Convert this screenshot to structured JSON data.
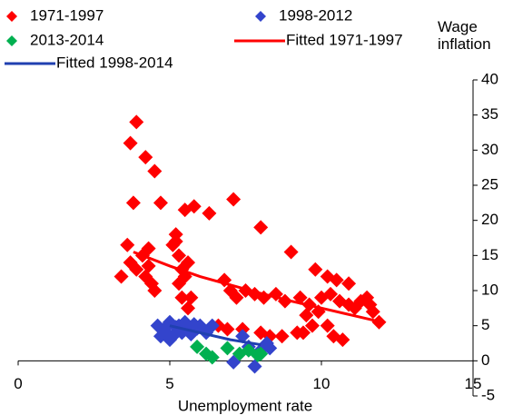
{
  "chart_data": {
    "type": "scatter",
    "x_label": "Unemployment rate",
    "y_label": "Wage inflation",
    "xlim": [
      0,
      15
    ],
    "xticks": [
      0,
      5,
      10,
      15
    ],
    "ylim": [
      -5,
      40
    ],
    "yticks": [
      -5,
      0,
      5,
      10,
      15,
      20,
      25,
      30,
      35,
      40
    ],
    "y_axis_position": "right",
    "grid": false,
    "series": [
      {
        "name": "1971-1997",
        "color": "#ff0000",
        "mark": "diamond",
        "x": [
          3.4,
          3.6,
          3.7,
          3.8,
          3.9,
          4.2,
          4.5,
          4.7,
          3.7,
          3.9,
          4.1,
          4.3,
          4.2,
          4.4,
          4.5,
          4.3,
          5.2,
          5.1,
          5.3,
          5.4,
          5.5,
          5.3,
          5.4,
          5.6,
          5.5,
          5.8,
          6.3,
          7.1,
          8.0,
          5.2,
          5.7,
          5.6,
          6.8,
          7.0,
          7.2,
          7.5,
          7.8,
          8.1,
          8.5,
          8.8,
          9.3,
          9.6,
          10.0,
          10.3,
          10.6,
          10.9,
          11.1,
          11.3,
          11.5,
          11.7,
          11.9,
          11.6,
          9.0,
          9.8,
          10.2,
          10.5,
          10.9,
          9.5,
          9.9,
          10.2,
          10.4,
          10.7,
          8.0,
          8.3,
          8.7,
          9.2,
          6.9,
          7.4,
          6.6,
          9.4,
          9.7
        ],
        "values": [
          12,
          16.5,
          31,
          22.5,
          34,
          29,
          27,
          22.5,
          14,
          13,
          15,
          16,
          12,
          11,
          10,
          13.5,
          18,
          16.5,
          15,
          13,
          12,
          11,
          9,
          7.5,
          21.5,
          22,
          21,
          23,
          19,
          17,
          9,
          14,
          11.5,
          10,
          9,
          10,
          9.5,
          9,
          9.5,
          8.5,
          9,
          8,
          9,
          9.5,
          8.5,
          8,
          7.5,
          8.5,
          9,
          7,
          5.5,
          8,
          15.5,
          13,
          12,
          11.5,
          11,
          6.5,
          7,
          5,
          3.5,
          3,
          4,
          3.5,
          3.5,
          4,
          4.5,
          4.5,
          5,
          4,
          5
        ]
      },
      {
        "name": "1998-2012",
        "color": "#3344cc",
        "mark": "diamond",
        "x": [
          4.6,
          4.8,
          4.9,
          5.0,
          5.1,
          5.2,
          5.3,
          5.4,
          5.5,
          5.6,
          5.7,
          5.8,
          5.9,
          6.0,
          6.2,
          6.4,
          4.7,
          5.0,
          7.1,
          7.6,
          7.8,
          8.0,
          8.2,
          8.3,
          7.4
        ],
        "values": [
          5,
          4.5,
          4,
          5.5,
          3.5,
          4.8,
          5,
          4,
          5.5,
          4.5,
          3.8,
          5.2,
          4.6,
          5,
          4,
          5,
          3.5,
          3,
          -0.2,
          2,
          -0.8,
          1.5,
          2.5,
          1.8,
          3.5
        ]
      },
      {
        "name": "2013-2014",
        "color": "#00b050",
        "mark": "diamond",
        "x": [
          5.9,
          6.2,
          6.4,
          6.9,
          7.3,
          7.6,
          7.9,
          8.0
        ],
        "values": [
          2,
          1,
          0.5,
          1.8,
          1,
          1.5,
          0.8,
          1
        ]
      },
      {
        "name": "Fitted 1971-1997",
        "color": "#ff0000",
        "mark": "line",
        "x": [
          3.8,
          5,
          6,
          7,
          8,
          9,
          10,
          11,
          12
        ],
        "values": [
          15.5,
          13.5,
          12,
          10.8,
          9.6,
          8.5,
          7.5,
          6.5,
          5.5
        ]
      },
      {
        "name": "Fitted 1998-2014",
        "color": "#2040b0",
        "mark": "line",
        "x": [
          5,
          6,
          7,
          8
        ],
        "values": [
          5,
          4,
          3,
          2.3
        ]
      }
    ]
  }
}
